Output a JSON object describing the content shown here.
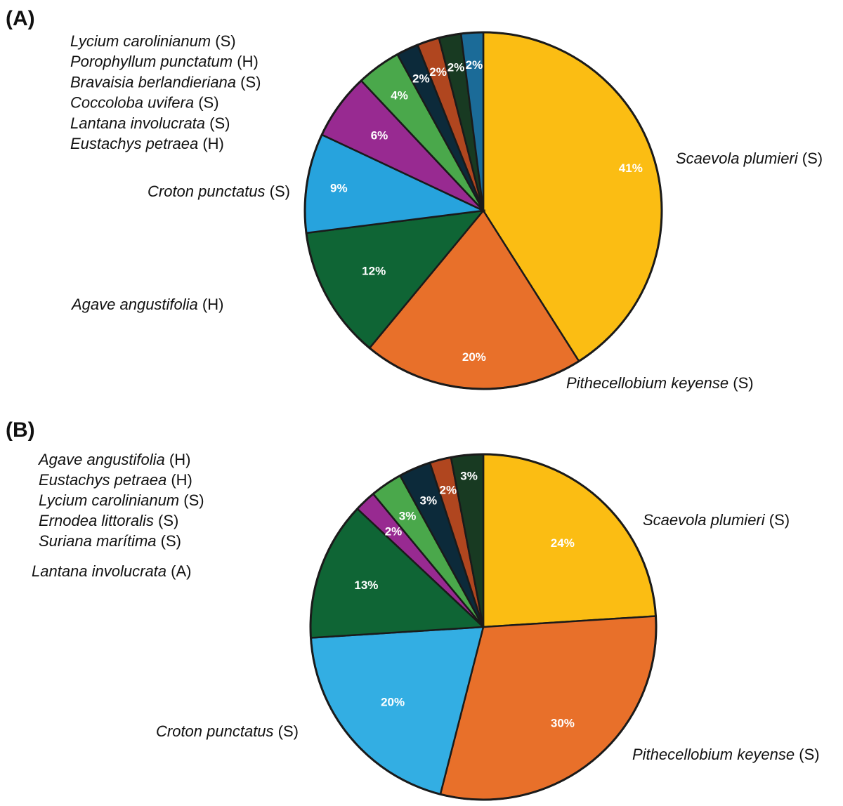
{
  "chart_data": [
    {
      "type": "pie",
      "panel": "(A)",
      "slices": [
        {
          "name": "Scaevola plumieri",
          "suffix": "(S)",
          "value": 41,
          "label": "41%",
          "color": "#fbbd13"
        },
        {
          "name": "Pithecellobium keyense",
          "suffix": "(S)",
          "value": 20,
          "label": "20%",
          "color": "#e8702a"
        },
        {
          "name": "Agave angustifolia",
          "suffix": "(H)",
          "value": 12,
          "label": "12%",
          "color": "#0f6535"
        },
        {
          "name": "Croton punctatus",
          "suffix": "(S)",
          "value": 9,
          "label": "9%",
          "color": "#27a3dd"
        },
        {
          "name": "Eustachys petraea",
          "suffix": "(H)",
          "value": 6,
          "label": "6%",
          "color": "#982a91"
        },
        {
          "name": "Lantana involucrata",
          "suffix": "(S)",
          "value": 4,
          "label": "4%",
          "color": "#4aa84b"
        },
        {
          "name": "Coccoloba uvifera",
          "suffix": "(S)",
          "value": 2,
          "label": "2%",
          "color": "#0c2a3a"
        },
        {
          "name": "Bravaisia berlandieriana",
          "suffix": "(S)",
          "value": 2,
          "label": "2%",
          "color": "#b0461f"
        },
        {
          "name": "Porophyllum punctatum",
          "suffix": "(H)",
          "value": 2,
          "label": "2%",
          "color": "#183a22"
        },
        {
          "name": "Lycium carolinianum",
          "suffix": "(S)",
          "value": 2,
          "label": "2%",
          "color": "#1b6b98"
        }
      ],
      "legend_list": [
        {
          "name": "Lycium carolinianum",
          "suffix": "(S)"
        },
        {
          "name": "Porophyllum punctatum",
          "suffix": "(H)"
        },
        {
          "name": "Bravaisia berlandieriana",
          "suffix": "(S)"
        },
        {
          "name": "Coccoloba uvifera",
          "suffix": "(S)"
        },
        {
          "name": "Lantana involucrata",
          "suffix": "(S)"
        },
        {
          "name": "Eustachys petraea",
          "suffix": "(H)"
        }
      ],
      "outer_labels": [
        {
          "name": "Scaevola plumieri",
          "suffix": "(S)"
        },
        {
          "name": "Pithecellobium keyense",
          "suffix": "(S)"
        },
        {
          "name": "Agave angustifolia",
          "suffix": "(H)"
        },
        {
          "name": "Croton punctatus",
          "suffix": "(S)"
        }
      ]
    },
    {
      "type": "pie",
      "panel": "(B)",
      "slices": [
        {
          "name": "Scaevola plumieri",
          "suffix": "(S)",
          "value": 24,
          "label": "24%",
          "color": "#fbbd13"
        },
        {
          "name": "Pithecellobium keyense",
          "suffix": "(S)",
          "value": 30,
          "label": "30%",
          "color": "#e8702a"
        },
        {
          "name": "Croton punctatus",
          "suffix": "(S)",
          "value": 20,
          "label": "20%",
          "color": "#33aee3"
        },
        {
          "name": "Lantana involucrata",
          "suffix": "(A)",
          "value": 13,
          "label": "13%",
          "color": "#0f6535"
        },
        {
          "name": "Suriana marítima",
          "suffix": "(S)",
          "value": 2,
          "label": "2%",
          "color": "#982a91"
        },
        {
          "name": "Ernodea littoralis",
          "suffix": "(S)",
          "value": 3,
          "label": "3%",
          "color": "#4aa84b"
        },
        {
          "name": "Lycium carolinianum",
          "suffix": "(S)",
          "value": 3,
          "label": "3%",
          "color": "#0c2a3a"
        },
        {
          "name": "Eustachys petraea",
          "suffix": "(H)",
          "value": 2,
          "label": "2%",
          "color": "#b0461f"
        },
        {
          "name": "Agave angustifolia",
          "suffix": "(H)",
          "value": 3,
          "label": "3%",
          "color": "#183a22"
        }
      ],
      "legend_list": [
        {
          "name": "Agave angustifolia",
          "suffix": "(H)"
        },
        {
          "name": "Eustachys petraea",
          "suffix": "(H)"
        },
        {
          "name": "Lycium carolinianum",
          "suffix": "(S)"
        },
        {
          "name": "Ernodea littoralis",
          "suffix": "(S)"
        },
        {
          "name": "Suriana marítima",
          "suffix": "(S)"
        }
      ],
      "outer_labels": [
        {
          "name": "Lantana involucrata",
          "suffix": "(A)"
        },
        {
          "name": "Scaevola plumieri",
          "suffix": "(S)"
        },
        {
          "name": "Croton punctatus",
          "suffix": "(S)"
        },
        {
          "name": "Pithecellobium keyense",
          "suffix": "(S)"
        }
      ]
    }
  ]
}
